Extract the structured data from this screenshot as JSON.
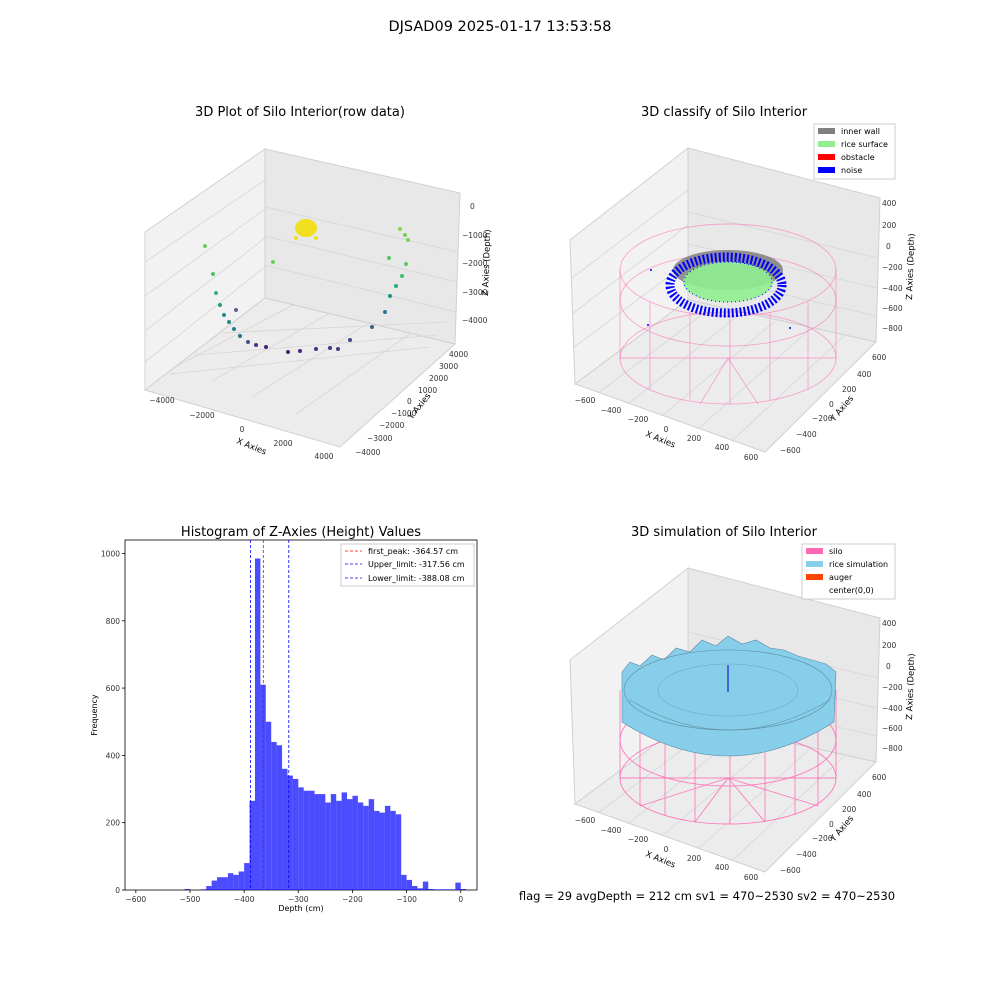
{
  "suptitle": "DJSAD09 2025-01-17 13:53:58",
  "footer": "flag = 29  avgDepth = 212 cm  sv1 = 470~2530  sv2 = 470~2530",
  "colors": {
    "hist_bar": "#0000ff",
    "peak_line": "#ff0000",
    "limit_line": "#0000ff",
    "inner_wall": "#808080",
    "rice_surface": "#90ee90",
    "obstacle": "#ff0000",
    "noise": "#0000ff",
    "silo": "#ff69b4",
    "rice_simulation": "#87ceeb",
    "auger": "#ff4500"
  },
  "chart_data": [
    {
      "type": "scatter",
      "title": "3D Plot of Silo Interior(row data)",
      "xlabel": "X Axies",
      "ylabel": "Y Axies",
      "zlabel": "Z Axies (Depth)",
      "x_ticks": [
        "−4000",
        "−2000",
        "0",
        "2000",
        "4000"
      ],
      "y_ticks": [
        "4000",
        "3000",
        "2000",
        "1000",
        "0",
        "−1000",
        "−2000",
        "−3000",
        "−4000"
      ],
      "z_ticks": [
        "0",
        "−1000",
        "−2000",
        "−3000",
        "−4000"
      ]
    },
    {
      "type": "scatter",
      "title": "3D classify of Silo Interior",
      "xlabel": "X Axies",
      "ylabel": "Y Axies",
      "zlabel": "Z Axies (Depth)",
      "x_ticks": [
        "−600",
        "−400",
        "−200",
        "0",
        "200",
        "400",
        "600"
      ],
      "y_ticks": [
        "600",
        "400",
        "200",
        "0",
        "−200",
        "−400",
        "−600"
      ],
      "z_ticks": [
        "400",
        "200",
        "0",
        "−200",
        "−400",
        "−600",
        "−800"
      ],
      "legend": [
        "inner wall",
        "rice surface",
        "obstacle",
        "noise"
      ],
      "legend_position": "top-right"
    },
    {
      "type": "bar",
      "title": "Histogram of Z-Axies (Height) Values",
      "xlabel": "Depth (cm)",
      "ylabel": "Frequency",
      "xlim": [
        -620,
        30
      ],
      "ylim": [
        0,
        1040
      ],
      "x_ticks": [
        "−600",
        "−500",
        "−400",
        "−300",
        "−200",
        "−100",
        "0"
      ],
      "y_ticks": [
        "0",
        "200",
        "400",
        "600",
        "800",
        "1000"
      ],
      "bin_width": 10,
      "bins_start": [
        -510,
        -480,
        -470,
        -460,
        -450,
        -440,
        -430,
        -420,
        -410,
        -400,
        -390,
        -380,
        -370,
        -360,
        -350,
        -340,
        -330,
        -320,
        -310,
        -300,
        -290,
        -280,
        -270,
        -260,
        -250,
        -240,
        -230,
        -220,
        -210,
        -200,
        -190,
        -180,
        -170,
        -160,
        -150,
        -140,
        -130,
        -120,
        -110,
        -100,
        -90,
        -80,
        -70,
        -60,
        -50,
        -40,
        -30,
        -20,
        -10,
        0
      ],
      "frequency": [
        3,
        2,
        12,
        28,
        38,
        38,
        50,
        45,
        55,
        80,
        265,
        985,
        610,
        500,
        440,
        430,
        360,
        340,
        330,
        305,
        295,
        295,
        285,
        285,
        260,
        285,
        265,
        290,
        270,
        280,
        260,
        250,
        270,
        235,
        230,
        250,
        235,
        225,
        45,
        30,
        12,
        5,
        25,
        3,
        2,
        2,
        2,
        2,
        22,
        3
      ],
      "reference_lines": [
        {
          "label": "first_peak: -364.57 cm",
          "value": -364.57,
          "style": "red-dashed"
        },
        {
          "label": "Upper_limit: -317.56 cm",
          "value": -317.56,
          "style": "blue-dashed"
        },
        {
          "label": "Lower_limit: -388.08 cm",
          "value": -388.08,
          "style": "blue-dashed"
        }
      ],
      "legend_position": "top-right"
    },
    {
      "type": "surface",
      "title": "3D simulation of Silo Interior",
      "xlabel": "X Axies",
      "ylabel": "Y Axies",
      "zlabel": "Z Axies (Depth)",
      "x_ticks": [
        "−600",
        "−400",
        "−200",
        "0",
        "200",
        "400",
        "600"
      ],
      "y_ticks": [
        "600",
        "400",
        "200",
        "0",
        "−200",
        "−400",
        "−600"
      ],
      "z_ticks": [
        "400",
        "200",
        "0",
        "−200",
        "−400",
        "−600",
        "−800"
      ],
      "legend": [
        "silo",
        "rice simulation",
        "auger",
        "center(0,0)"
      ],
      "legend_position": "top-right"
    }
  ]
}
